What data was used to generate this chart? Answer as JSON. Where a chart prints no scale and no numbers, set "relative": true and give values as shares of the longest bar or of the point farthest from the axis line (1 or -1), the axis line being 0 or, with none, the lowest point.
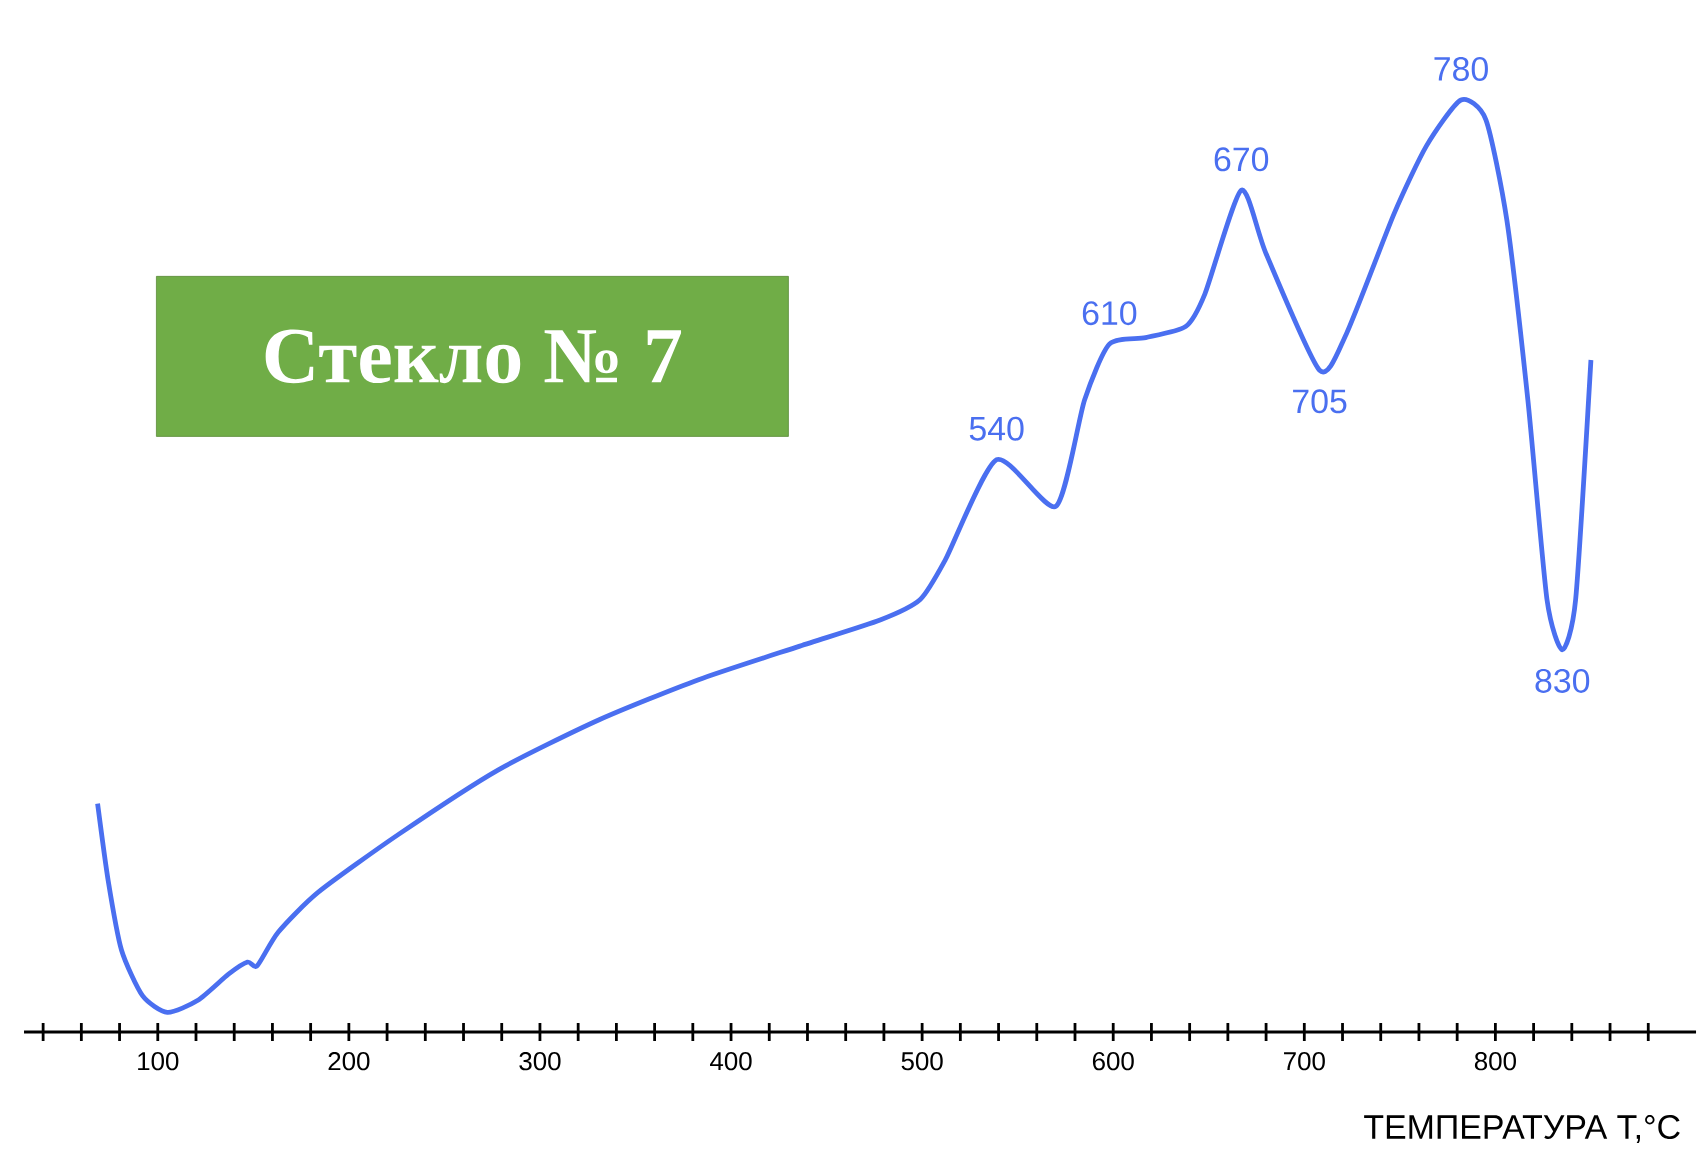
{
  "chart_data": {
    "type": "line",
    "title": "Стекло № 7",
    "xlabel": "ТЕМПЕРАТУРА Т,°С",
    "relative": true,
    "color": "#4a6ff0",
    "tick_labels": "x",
    "grid": false,
    "marker": "none",
    "line_style": "solid",
    "x": [
      68.5,
      74,
      81,
      92,
      105,
      121,
      137,
      147,
      152,
      163,
      184,
      226,
      278,
      331,
      383,
      436,
      478,
      499,
      512,
      539,
      570,
      585,
      598,
      617,
      638,
      648,
      667,
      680,
      708,
      722,
      747,
      764,
      782,
      795,
      806,
      817,
      827,
      835,
      842,
      850
    ],
    "values": [
      0.245,
      0.163,
      0.088,
      0.039,
      0.021,
      0.034,
      0.062,
      0.075,
      0.071,
      0.107,
      0.15,
      0.212,
      0.281,
      0.335,
      0.378,
      0.414,
      0.442,
      0.464,
      0.506,
      0.614,
      0.564,
      0.678,
      0.738,
      0.745,
      0.757,
      0.792,
      0.903,
      0.835,
      0.71,
      0.749,
      0.878,
      0.951,
      1.0,
      0.979,
      0.871,
      0.678,
      0.464,
      0.41,
      0.464,
      0.721
    ],
    "xlim": [
      30,
      905
    ],
    "xticks": [
      {
        "value": 40,
        "label": null
      },
      {
        "value": 60,
        "label": null
      },
      {
        "value": 80,
        "label": null
      },
      100,
      {
        "value": 120,
        "label": null
      },
      {
        "value": 140,
        "label": null
      },
      {
        "value": 160,
        "label": null
      },
      {
        "value": 180,
        "label": null
      },
      200,
      {
        "value": 220,
        "label": null
      },
      {
        "value": 240,
        "label": null
      },
      {
        "value": 260,
        "label": null
      },
      {
        "value": 280,
        "label": null
      },
      300,
      {
        "value": 320,
        "label": null
      },
      {
        "value": 340,
        "label": null
      },
      {
        "value": 360,
        "label": null
      },
      {
        "value": 380,
        "label": null
      },
      400,
      {
        "value": 420,
        "label": null
      },
      {
        "value": 440,
        "label": null
      },
      {
        "value": 460,
        "label": null
      },
      {
        "value": 480,
        "label": null
      },
      500,
      {
        "value": 520,
        "label": null
      },
      {
        "value": 540,
        "label": null
      },
      {
        "value": 560,
        "label": null
      },
      {
        "value": 580,
        "label": null
      },
      600,
      {
        "value": 620,
        "label": null
      },
      {
        "value": 640,
        "label": null
      },
      {
        "value": 660,
        "label": null
      },
      {
        "value": 680,
        "label": null
      },
      700,
      {
        "value": 720,
        "label": null
      },
      {
        "value": 740,
        "label": null
      },
      {
        "value": 760,
        "label": null
      },
      {
        "value": 780,
        "label": null
      },
      800,
      {
        "value": 820,
        "label": null
      },
      {
        "value": 840,
        "label": null
      },
      {
        "value": 860,
        "label": null
      },
      {
        "value": 880,
        "label": null
      }
    ],
    "annotations": [
      {
        "text": "540",
        "x": 539,
        "y": 0.614
      },
      {
        "text": "610",
        "x": 598,
        "y": 0.738
      },
      {
        "text": "670",
        "x": 667,
        "y": 0.903
      },
      {
        "text": "705",
        "x": 708,
        "y": 0.71
      },
      {
        "text": "780",
        "x": 782,
        "y": 1.0
      },
      {
        "text": "830",
        "x": 835,
        "y": 0.41
      }
    ]
  }
}
